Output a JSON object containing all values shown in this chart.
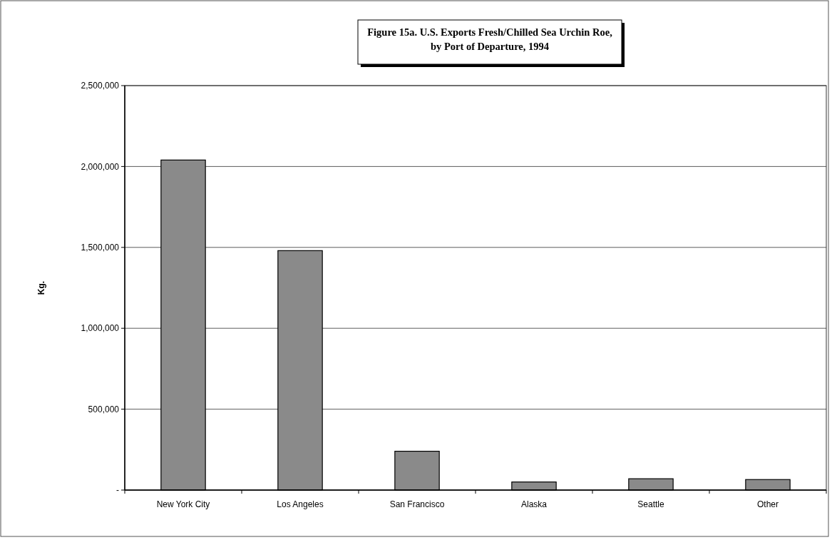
{
  "chart_data": {
    "type": "bar",
    "title": "Figure 15a. U.S. Exports Fresh/Chilled Sea Urchin Roe,\nby Port of Departure, 1994",
    "ylabel": "Kg.",
    "categories": [
      "New York City",
      "Los Angeles",
      "San Francisco",
      "Alaska",
      "Seattle",
      "Other"
    ],
    "values": [
      2040000,
      1480000,
      240000,
      50000,
      70000,
      65000
    ],
    "color": "#8a8a8a",
    "ylim": [
      0,
      2500000
    ],
    "yticks": [
      {
        "value": 0,
        "label": "-"
      },
      {
        "value": 500000,
        "label": "500,000"
      },
      {
        "value": 1000000,
        "label": "1,000,000"
      },
      {
        "value": 1500000,
        "label": "1,500,000"
      },
      {
        "value": 2000000,
        "label": "2,000,000"
      },
      {
        "value": 2500000,
        "label": "2,500,000"
      }
    ],
    "grid": "y"
  }
}
